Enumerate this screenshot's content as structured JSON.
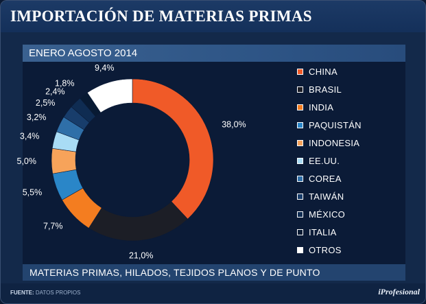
{
  "title": "IMPORTACIÓN DE MATERIAS PRIMAS",
  "subtitle": "ENERO AGOSTO 2014",
  "bottom_text": "MATERIAS PRIMAS, HILADOS, TEJIDOS PLANOS Y DE PUNTO",
  "footer": {
    "source_label": "FUENTE:",
    "source_value": "DATOS PROPIOS",
    "brand": "iProfesional"
  },
  "chart_data": {
    "type": "pie",
    "variant": "donut",
    "title": "IMPORTACIÓN DE MATERIAS PRIMAS",
    "subtitle": "ENERO AGOSTO 2014",
    "legend_position": "right",
    "slices": [
      {
        "label": "CHINA",
        "value": 38.0,
        "display": "38,0%",
        "color": "#f05a28"
      },
      {
        "label": "BRASIL",
        "value": 21.0,
        "display": "21,0%",
        "color": "#1c1e26"
      },
      {
        "label": "INDIA",
        "value": 7.7,
        "display": "7,7%",
        "color": "#f47d20"
      },
      {
        "label": "PAQUISTÁN",
        "value": 5.5,
        "display": "5,5%",
        "color": "#2a86c8"
      },
      {
        "label": "INDONESIA",
        "value": 5.0,
        "display": "5,0%",
        "color": "#f7a35a"
      },
      {
        "label": "EE.UU.",
        "value": 3.4,
        "display": "3,4%",
        "color": "#a9dcf5"
      },
      {
        "label": "COREA",
        "value": 3.2,
        "display": "3,2%",
        "color": "#2f6fa8"
      },
      {
        "label": "TAIWÁN",
        "value": 2.5,
        "display": "2,5%",
        "color": "#183d6b"
      },
      {
        "label": "MÉXICO",
        "value": 2.4,
        "display": "2,4%",
        "color": "#0f2c52"
      },
      {
        "label": "ITALIA",
        "value": 1.8,
        "display": "1,8%",
        "color": "#081a33"
      },
      {
        "label": "OTROS",
        "value": 9.4,
        "display": "9,4%",
        "color": "#ffffff"
      }
    ]
  }
}
